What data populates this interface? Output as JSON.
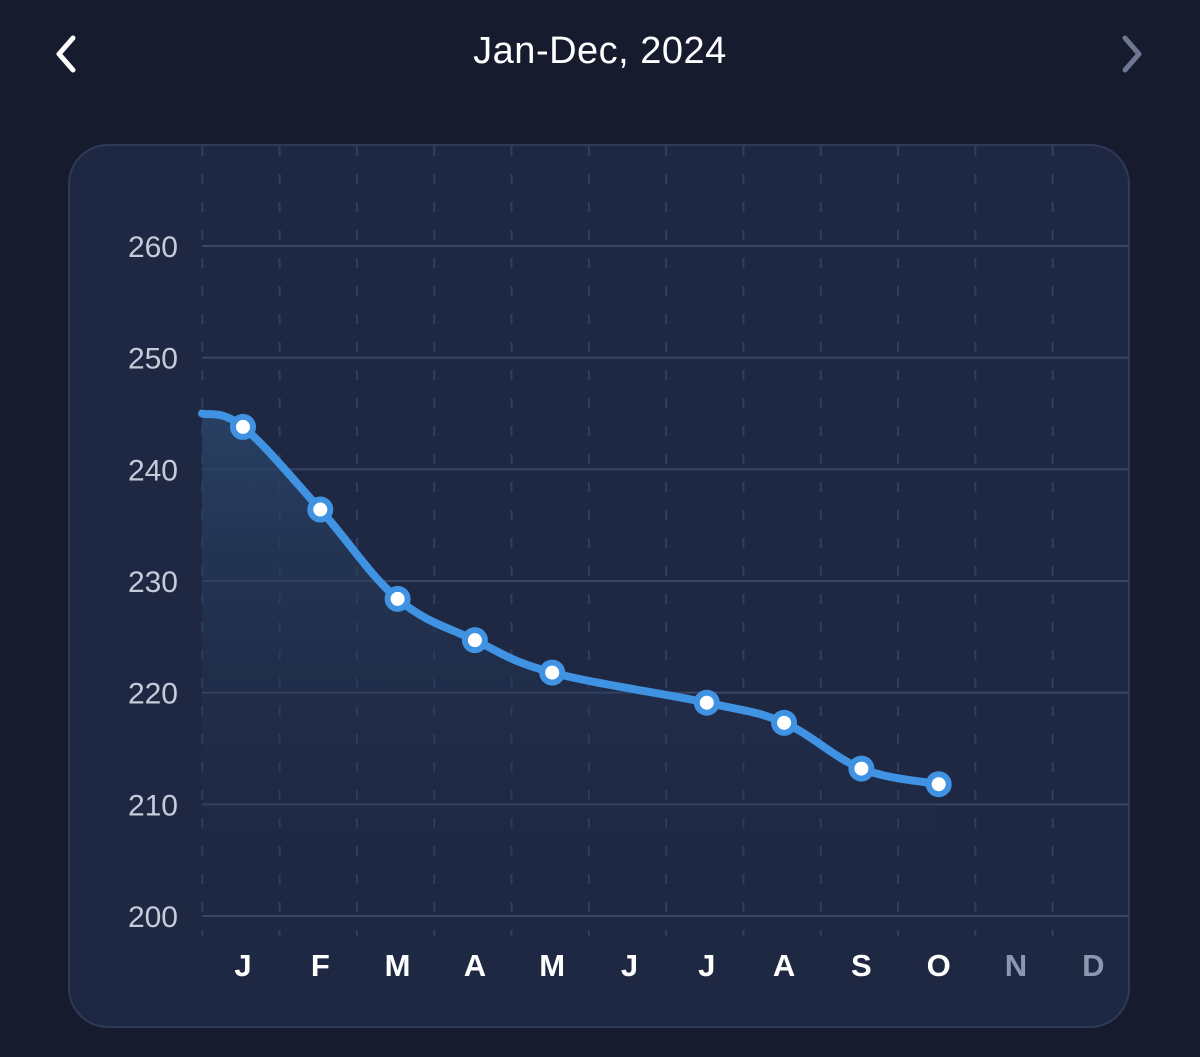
{
  "header": {
    "title": "Jan-Dec, 2024",
    "prev_icon": "chevron-left-icon",
    "next_icon": "chevron-right-icon"
  },
  "colors": {
    "background": "#161b2e",
    "card": "#1e2843",
    "line": "#3f93e2",
    "grid": "#3a4564",
    "active_tick": "#ffffff",
    "inactive_tick": "#8e97b1"
  },
  "chart_data": {
    "type": "line",
    "title": "",
    "xlabel": "",
    "ylabel": "",
    "categories": [
      "J",
      "F",
      "M",
      "A",
      "M",
      "J",
      "J",
      "A",
      "S",
      "O",
      "N",
      "D"
    ],
    "active_categories": 10,
    "ylim": [
      200,
      260
    ],
    "yticks": [
      200,
      210,
      220,
      230,
      240,
      250,
      260
    ],
    "grid": true,
    "series": [
      {
        "start_value": 245,
        "points": [
          {
            "x": 0,
            "y": 243.8
          },
          {
            "x": 1,
            "y": 236.4
          },
          {
            "x": 2,
            "y": 228.4
          },
          {
            "x": 3,
            "y": 224.7
          },
          {
            "x": 4,
            "y": 221.8
          },
          {
            "x": 6,
            "y": 219.1
          },
          {
            "x": 7,
            "y": 217.3
          },
          {
            "x": 8,
            "y": 213.2
          },
          {
            "x": 9,
            "y": 211.8
          }
        ]
      }
    ]
  }
}
